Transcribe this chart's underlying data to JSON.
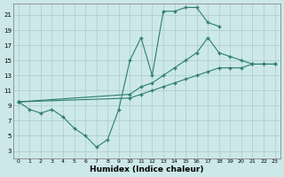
{
  "xlabel": "Humidex (Indice chaleur)",
  "bg_color": "#cce8e8",
  "line_color": "#2d7d6e",
  "grid_color": "#b8d8d8",
  "ylim": [
    2,
    22.5
  ],
  "xlim": [
    -0.5,
    23.5
  ],
  "yticks": [
    3,
    5,
    7,
    9,
    11,
    13,
    15,
    17,
    19,
    21
  ],
  "xticks": [
    0,
    1,
    2,
    3,
    4,
    5,
    6,
    7,
    8,
    9,
    10,
    11,
    12,
    13,
    14,
    15,
    16,
    17,
    18,
    19,
    20,
    21,
    22,
    23
  ],
  "line1_x": [
    0,
    1,
    2,
    3,
    4,
    5,
    6,
    7,
    8,
    9,
    10,
    11,
    12,
    13,
    14,
    15,
    16,
    17,
    18
  ],
  "line1_y": [
    9.5,
    8.5,
    8.0,
    8.5,
    7.5,
    6.0,
    5.0,
    3.5,
    4.5,
    8.5,
    15.0,
    18.0,
    13.0,
    21.5,
    21.5,
    22.0,
    22.0,
    20.0,
    19.5
  ],
  "line2_x": [
    0,
    10,
    11,
    12,
    13,
    14,
    15,
    16,
    17,
    18,
    19,
    20,
    21,
    22,
    23
  ],
  "line2_y": [
    9.5,
    10.0,
    10.5,
    11.0,
    11.5,
    12.0,
    12.5,
    13.0,
    13.5,
    14.0,
    14.0,
    14.0,
    14.5,
    14.5,
    14.5
  ],
  "line3_x": [
    0,
    10,
    11,
    12,
    13,
    14,
    15,
    16,
    17,
    18,
    19,
    20,
    21,
    22,
    23
  ],
  "line3_y": [
    9.5,
    10.5,
    11.5,
    12.0,
    13.0,
    14.0,
    15.0,
    16.0,
    18.0,
    16.0,
    15.5,
    15.0,
    14.5,
    14.5,
    14.5
  ]
}
